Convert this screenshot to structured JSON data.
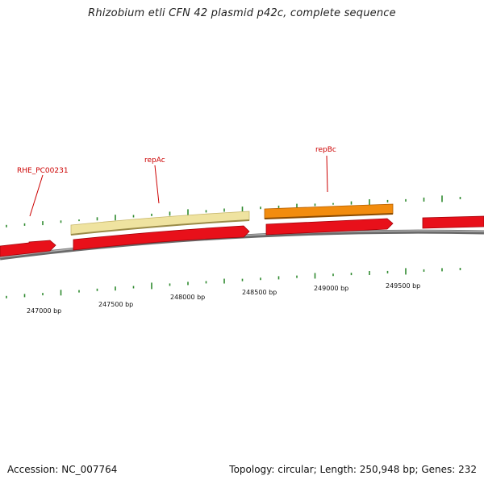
{
  "title": "Rhizobium etli CFN 42 plasmid p42c, complete sequence",
  "footer": {
    "accession": "Accession: NC_007764",
    "summary": "Topology: circular; Length: 250,948 bp; Genes: 232"
  },
  "colors": {
    "backbone": "#8a8a8a",
    "cds_red": "#e8101a",
    "gene_label": "#cc0000",
    "repAc_fill": "#efe3a0",
    "repBc_fill": "#f28c0e",
    "gc_ticks": "#2f8a2f"
  },
  "labels": {
    "RHE_PC00231": "RHE_PC00231",
    "repAc": "repAc",
    "repBc": "repBc"
  },
  "scale": {
    "positions": [
      "247000 bp",
      "247500 bp",
      "248000 bp",
      "248500 bp",
      "249000 bp",
      "249500 bp"
    ]
  }
}
